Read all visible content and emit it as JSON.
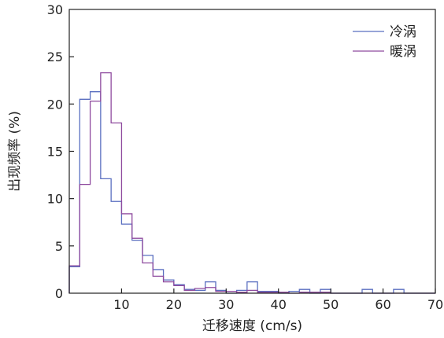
{
  "chart_data": {
    "type": "histogram-step",
    "xlabel": "迁移速度 (cm/s)",
    "ylabel": "出现频率 (%)",
    "xlim": [
      0,
      70
    ],
    "ylim": [
      0,
      30
    ],
    "xticks": [
      10,
      20,
      30,
      40,
      50,
      60,
      70
    ],
    "yticks": [
      0,
      5,
      10,
      15,
      20,
      25,
      30
    ],
    "grid": false,
    "legend_position": "top-right",
    "bin_width": 2,
    "series": [
      {
        "name": "冷涡",
        "color": "#5a6fc0",
        "bin_left_edges": [
          0,
          2,
          4,
          6,
          8,
          10,
          12,
          14,
          16,
          18,
          20,
          22,
          24,
          26,
          28,
          30,
          32,
          34,
          36,
          38,
          40,
          42,
          44,
          46,
          48,
          50,
          52,
          54,
          56,
          58,
          60,
          62,
          64,
          66,
          68
        ],
        "values": [
          2.8,
          20.5,
          21.3,
          12.1,
          9.7,
          7.3,
          5.6,
          4.0,
          2.5,
          1.4,
          0.9,
          0.4,
          0.3,
          1.2,
          0.3,
          0,
          0.3,
          1.2,
          0.2,
          0.2,
          0,
          0.2,
          0.4,
          0,
          0.4,
          0,
          0,
          0,
          0.4,
          0,
          0,
          0.4,
          0,
          0,
          0
        ]
      },
      {
        "name": "暖涡",
        "color": "#8e4a9e",
        "bin_left_edges": [
          0,
          2,
          4,
          6,
          8,
          10,
          12,
          14,
          16,
          18,
          20,
          22,
          24,
          26,
          28,
          30,
          32,
          34,
          36,
          38,
          40,
          42,
          44,
          46,
          48,
          50,
          52,
          54,
          56,
          58,
          60,
          62,
          64,
          66,
          68
        ],
        "values": [
          2.9,
          11.5,
          20.3,
          23.3,
          18.0,
          8.4,
          5.8,
          3.2,
          1.8,
          1.2,
          0.8,
          0.3,
          0.5,
          0.6,
          0.2,
          0.2,
          0.1,
          0.3,
          0.1,
          0.1,
          0.1,
          0,
          0.1,
          0.1,
          0.1,
          0,
          0,
          0,
          0,
          0,
          0,
          0,
          0,
          0,
          0
        ]
      }
    ]
  }
}
